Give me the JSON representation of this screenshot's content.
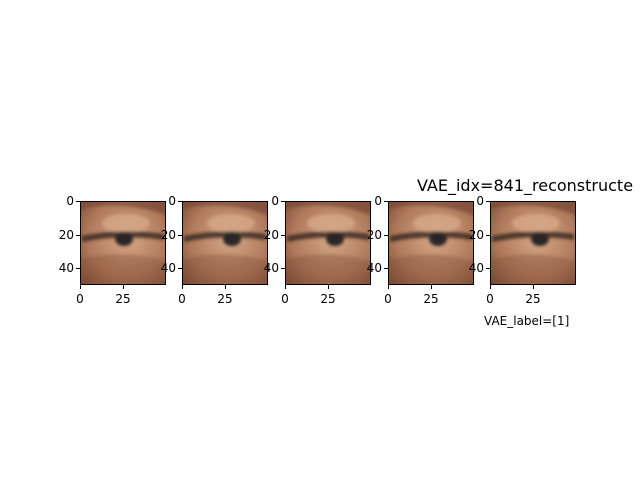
{
  "chart_data": {
    "type": "image_grid",
    "title": "VAE_idx=841_reconstructe",
    "xlabel": "VAE_label=[1]",
    "panels": [
      {
        "name": "eye-reconstruction-1",
        "x_ticks": [
          "0",
          "25"
        ],
        "y_ticks": [
          "0",
          "20",
          "40"
        ],
        "xlim": [
          0,
          50
        ],
        "ylim": [
          50,
          0
        ]
      },
      {
        "name": "eye-reconstruction-2",
        "x_ticks": [
          "0",
          "25"
        ],
        "y_ticks": [
          "0",
          "20",
          "40"
        ],
        "xlim": [
          0,
          50
        ],
        "ylim": [
          50,
          0
        ]
      },
      {
        "name": "eye-reconstruction-3",
        "x_ticks": [
          "0",
          "25"
        ],
        "y_ticks": [
          "0",
          "20",
          "40"
        ],
        "xlim": [
          0,
          50
        ],
        "ylim": [
          50,
          0
        ]
      },
      {
        "name": "eye-reconstruction-4",
        "x_ticks": [
          "0",
          "25"
        ],
        "y_ticks": [
          "0",
          "20",
          "40"
        ],
        "xlim": [
          0,
          50
        ],
        "ylim": [
          50,
          0
        ]
      },
      {
        "name": "eye-reconstruction-5",
        "x_ticks": [
          "0",
          "25"
        ],
        "y_ticks": [
          "0",
          "20",
          "40"
        ],
        "xlim": [
          0,
          50
        ],
        "ylim": [
          50,
          0
        ]
      }
    ]
  },
  "colors": {
    "skin": "#b07a5c",
    "skin_light": "#d6a888",
    "skin_dark": "#7a4a34",
    "iris": "#2a2526",
    "lash": "#3a2822"
  }
}
